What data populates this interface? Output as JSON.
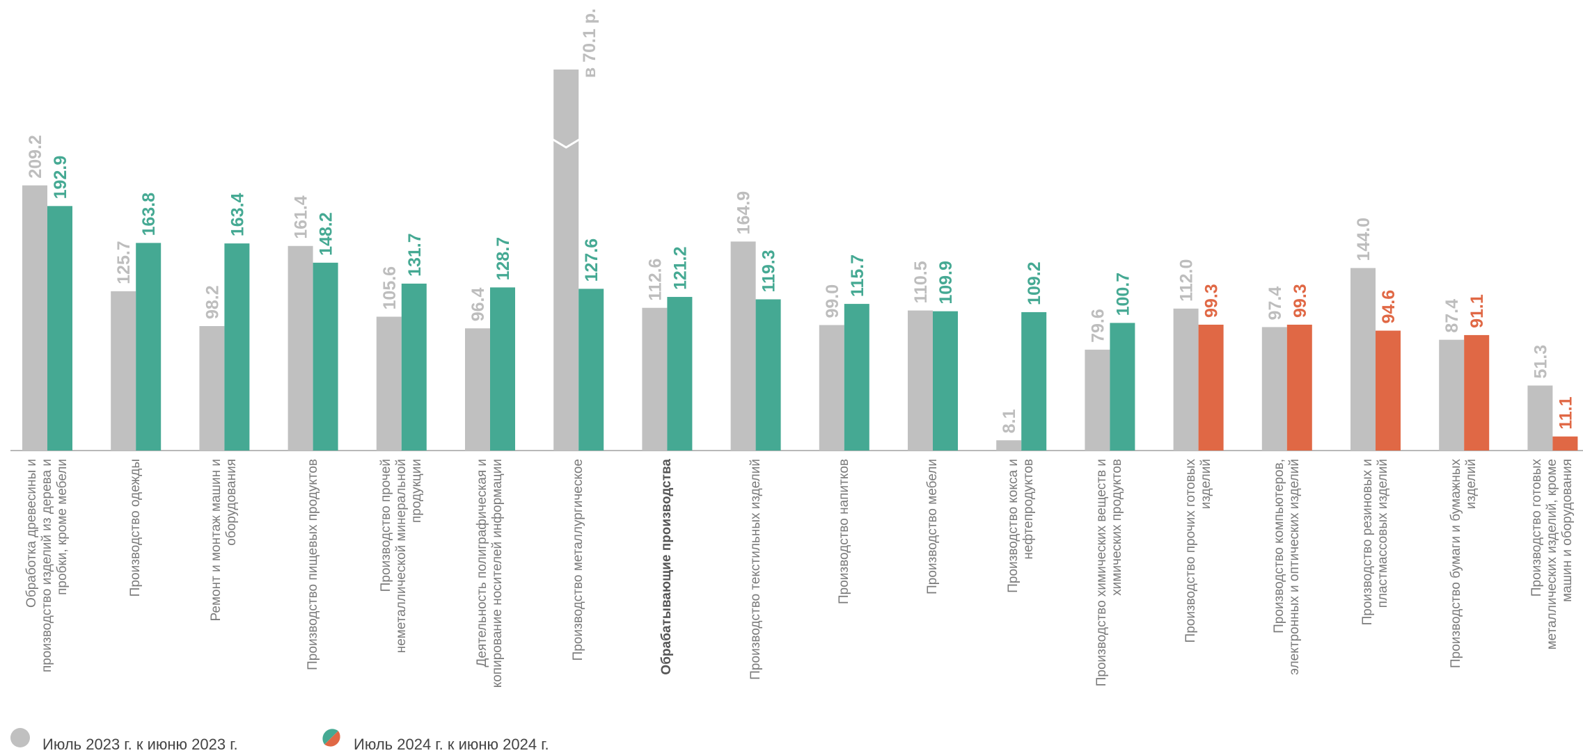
{
  "chart_data": {
    "type": "bar",
    "categories": [
      "Обработка древесины и производство изделий из дерева и пробки, кроме мебели",
      "Производство одежды",
      "Ремонт и монтаж машин и оборудования",
      "Производство пищевых продуктов",
      "Производство прочей неметаллической минеральной продукции",
      "Деятельность полиграфическая и копирование носителей информации",
      "Производство металлургическое",
      "Обрабатывающие производства",
      "Производство текстильных изделий",
      "Производство напитков",
      "Производство мебели",
      "Производство кокса и нефтепродуктов",
      "Производство химических веществ и химических продуктов",
      "Производство прочих готовых изделий",
      "Производство компьютеров, электронных и оптических изделий",
      "Производство резиновых и пластмассовых изделий",
      "Производство бумаги и бумажных изделий",
      "Производство готовых металлических изделий, кроме машин и оборудования"
    ],
    "bold_category": 7,
    "series": [
      {
        "name": "Июль 2023 г. к июню 2023 г.",
        "color": "#c0c0c0",
        "label_color": "#bdbdbd",
        "values": [
          209.2,
          125.7,
          98.2,
          161.4,
          105.6,
          96.4,
          7010,
          112.6,
          164.9,
          99.0,
          110.5,
          8.1,
          79.6,
          112.0,
          97.4,
          144.0,
          87.4,
          51.3
        ],
        "value_labels": [
          "209.2",
          "125.7",
          "98.2",
          "161.4",
          "105.6",
          "96.4",
          "в 70.1 р.",
          "112.6",
          "164.9",
          "99.0",
          "110.5",
          "8.1",
          "79.6",
          "112.0",
          "97.4",
          "144.0",
          "87.4",
          "51.3"
        ]
      },
      {
        "name": "Июль 2024 г. к июню 2024 г.",
        "colors": [
          "#45a993",
          "#45a993",
          "#45a993",
          "#45a993",
          "#45a993",
          "#45a993",
          "#45a993",
          "#45a993",
          "#45a993",
          "#45a993",
          "#45a993",
          "#45a993",
          "#45a993",
          "#e06845",
          "#e06845",
          "#e06845",
          "#e06845",
          "#e06845"
        ],
        "values": [
          192.9,
          163.8,
          163.4,
          148.2,
          131.7,
          128.7,
          127.6,
          121.2,
          119.3,
          115.7,
          109.9,
          109.2,
          100.7,
          99.3,
          99.3,
          94.6,
          91.1,
          11.1
        ],
        "value_labels": [
          "192.9",
          "163.8",
          "163.4",
          "148.2",
          "131.7",
          "128.7",
          "127.6",
          "121.2",
          "119.3",
          "115.7",
          "109.9",
          "109.2",
          "100.7",
          "99.3",
          "99.3",
          "94.6",
          "91.1",
          "11.1"
        ]
      }
    ]
  }
}
